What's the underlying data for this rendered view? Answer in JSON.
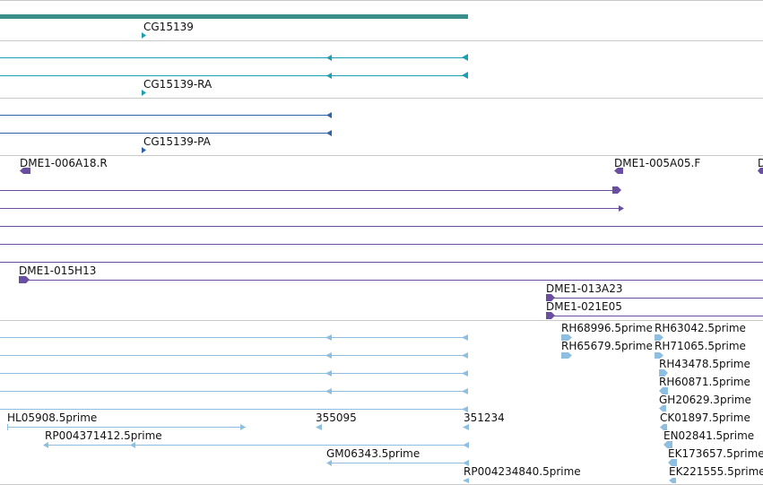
{
  "colors": {
    "gene": "#3a8f8a",
    "transcript": "#1b9fb3",
    "protein": "#2e63a8",
    "cdna": "#6a4ea0",
    "est": "#8fbfe0",
    "separator": "#c9c9c9"
  },
  "tracks": {
    "gene": {
      "label": "CG15139"
    },
    "transcripts": {
      "label": "CG15139-RA"
    },
    "proteins": {
      "label": "CG15139-PA"
    },
    "cdna": {
      "labels": [
        "DME1-006A18.R",
        "DME1-005A05.F",
        "D",
        "DME1-015H13",
        "DME1-013A23",
        "DME1-021E05"
      ]
    },
    "est": {
      "labels": [
        "RH68996.5prime",
        "RH63042.5prime",
        "RH65679.5prime",
        "RH71065.5prime",
        "RH43478.5prime",
        "RH60871.5prime",
        "GH20629.3prime",
        "HL05908.5prime",
        "355095",
        "351234",
        "CK01897.5prime",
        "RP004371412.5prime",
        "EN02841.5prime",
        "GM06343.5prime",
        "EK173657.5prime",
        "RP004234840.5prime",
        "EK221555.5prime"
      ]
    }
  }
}
